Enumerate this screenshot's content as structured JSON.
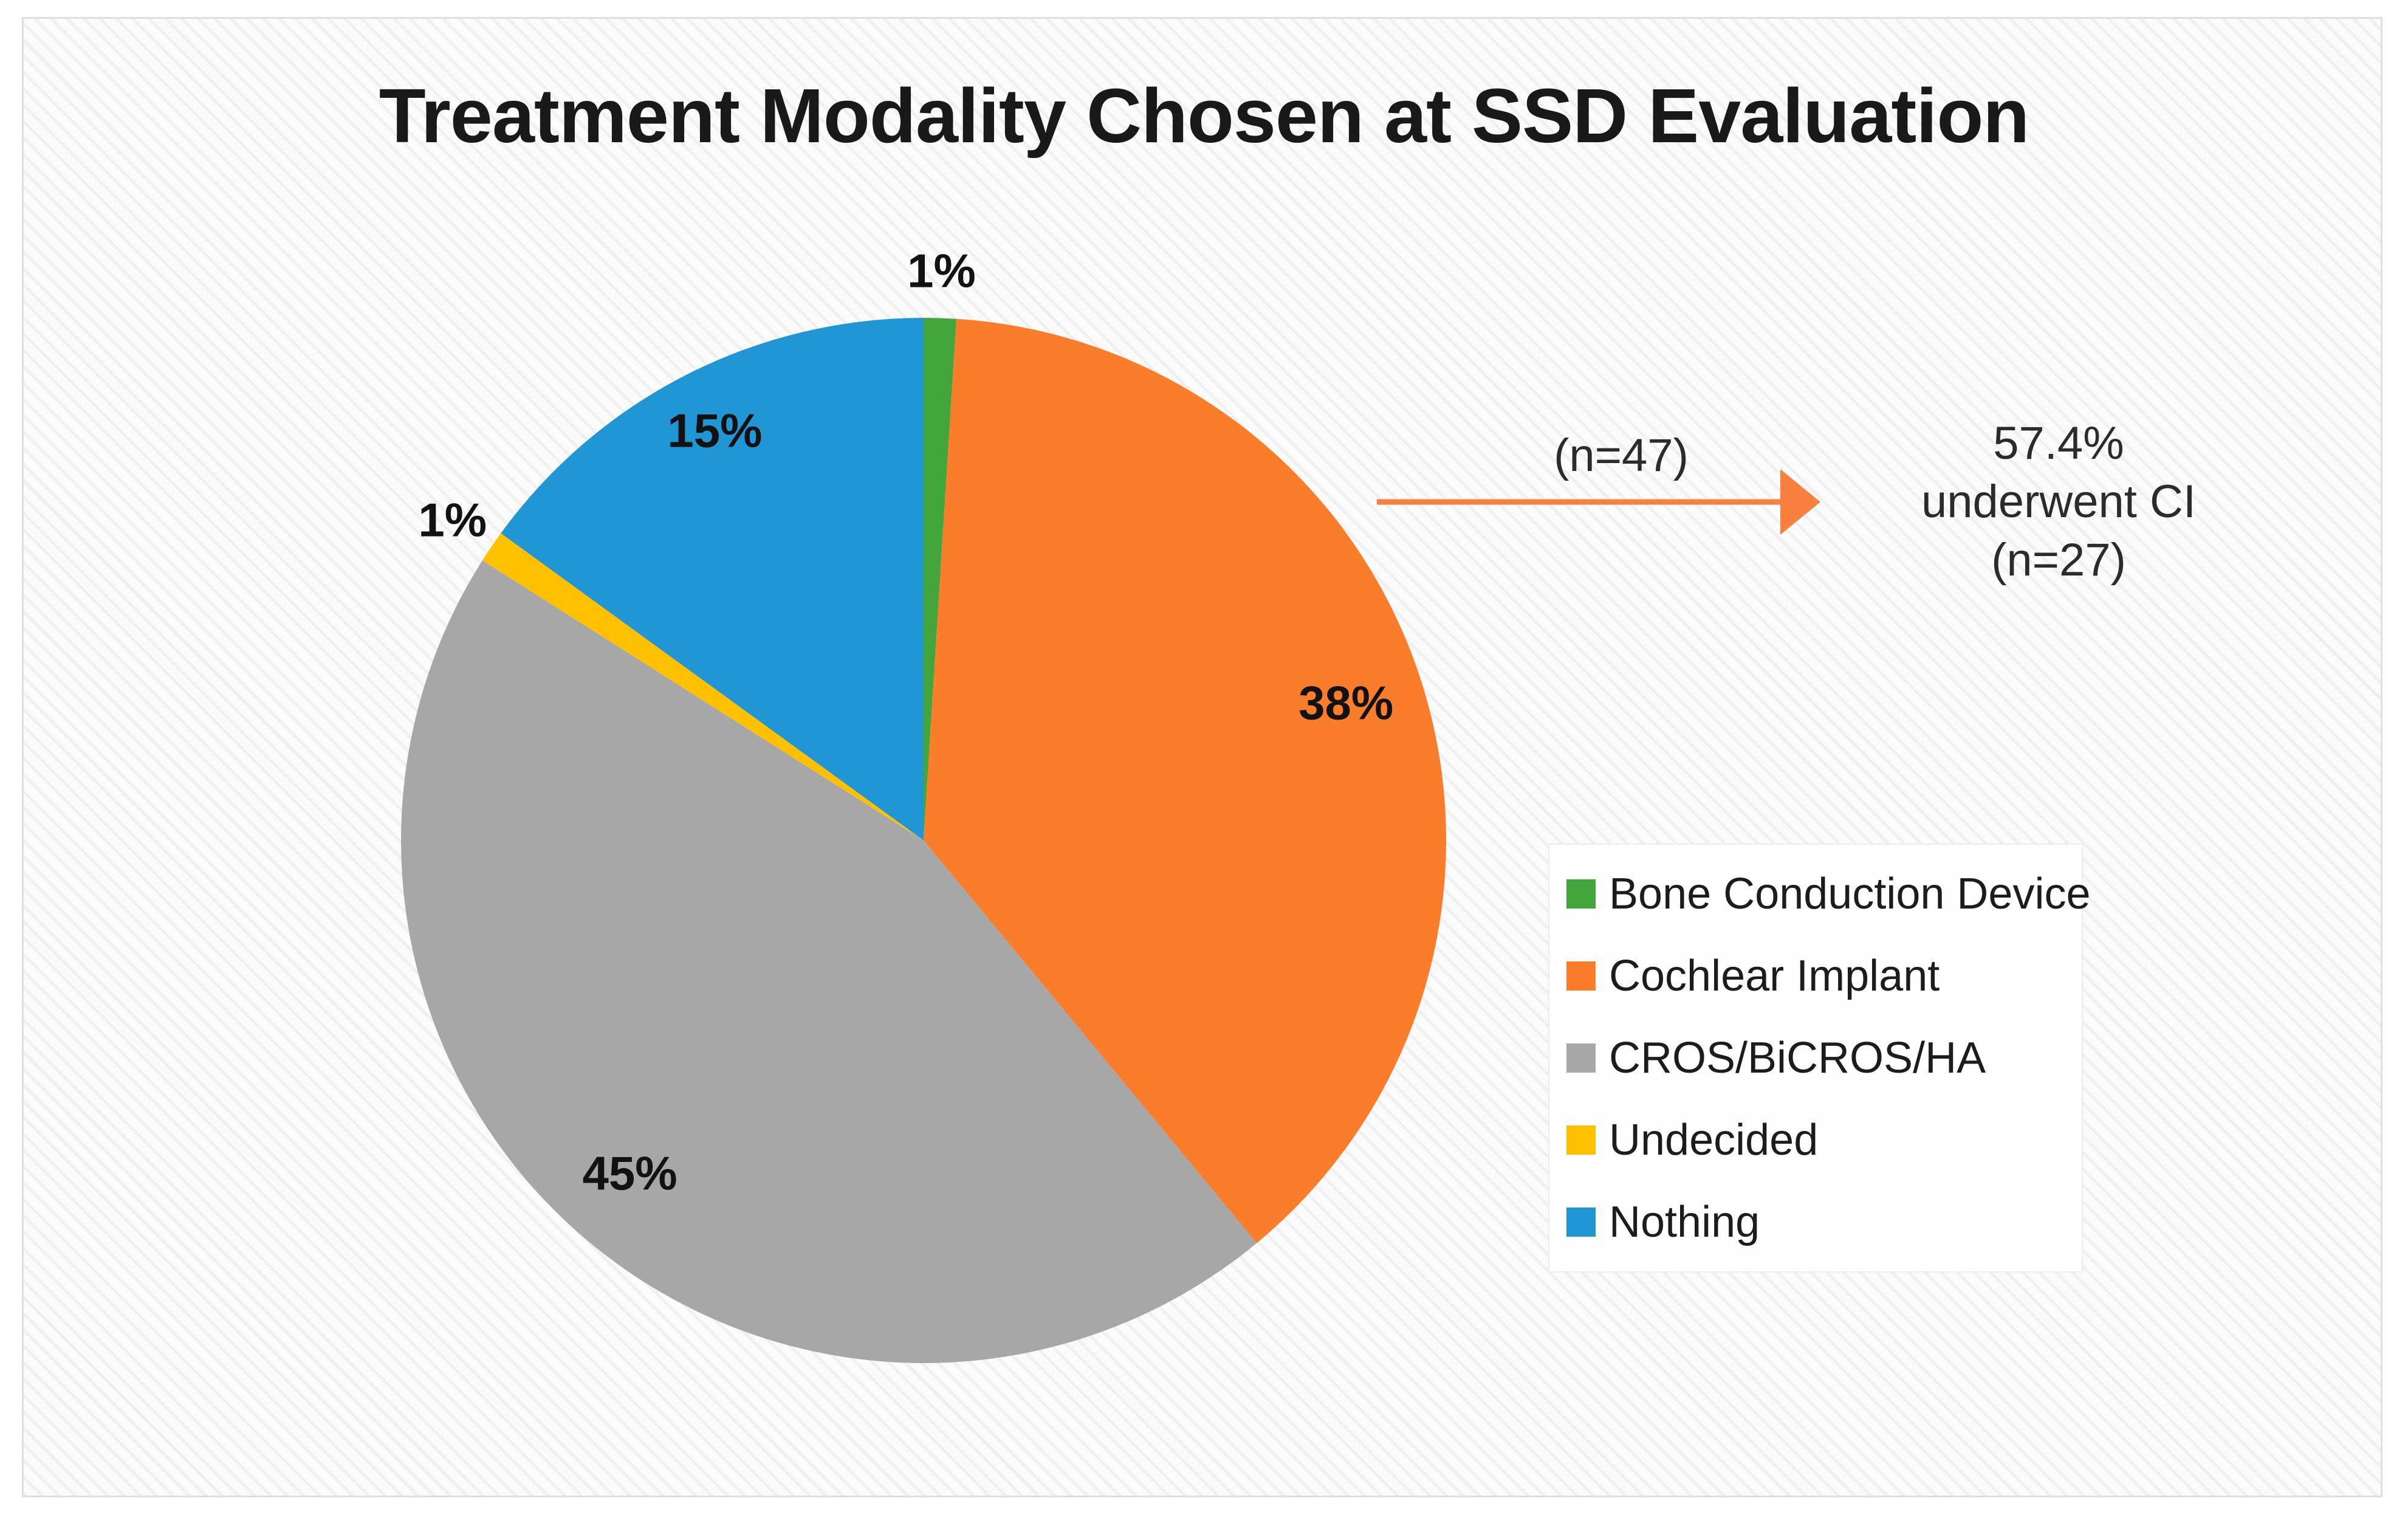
{
  "chart_data": {
    "type": "pie",
    "title": "Treatment Modality Chosen at SSD Evaluation",
    "categories": [
      "Bone Conduction Device",
      "Cochlear Implant",
      "CROS/BiCROS/HA",
      "Undecided",
      "Nothing"
    ],
    "values": [
      1,
      38,
      45,
      1,
      15
    ],
    "value_unit": "%",
    "labels": [
      "1%",
      "38%",
      "45%",
      "1%",
      "15%"
    ],
    "colors": [
      "#42A63C",
      "#F97D2B",
      "#A7A7A7",
      "#FFC000",
      "#2097D4"
    ],
    "start_angle_deg": 0,
    "direction": "clockwise",
    "legend_position": "right"
  },
  "annotation": {
    "source_label": "(n=47)",
    "result_lines": [
      "57.4%",
      "underwent CI",
      "(n=27)"
    ],
    "arrow_color": "#F8813F"
  }
}
